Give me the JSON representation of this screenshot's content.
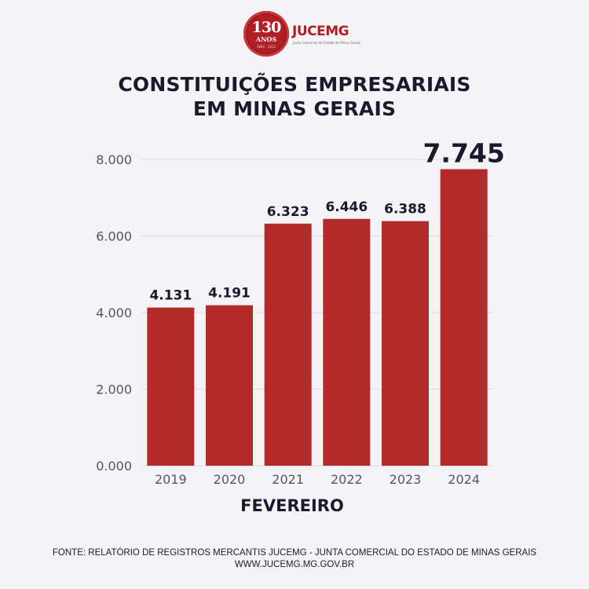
{
  "logo": {
    "seal_number": "130",
    "seal_word": "ANOS",
    "seal_years": "1892 - 2022",
    "brand": "JUCEMG",
    "tagline": "Junta Comercial do Estado de Minas Gerais"
  },
  "title_lines": [
    "CONSTITUIÇÕES EMPRESARIAIS",
    "EM MINAS GERAIS"
  ],
  "footer_lines": [
    "FONTE: RELATÓRIO DE REGISTROS MERCANTIS JUCEMG - JUNTA COMERCIAL DO ESTADO DE MINAS GERAIS",
    "WWW.JUCEMG.MG.GOV.BR"
  ],
  "colors": {
    "bar": "#b22a2a",
    "text": "#1a1a2e",
    "axis_text": "#555566",
    "grid": "#dcdce2",
    "background": "#f4f4f6"
  },
  "chart_data": {
    "type": "bar",
    "title": "CONSTITUIÇÕES EMPRESARIAIS EM MINAS GERAIS",
    "xlabel": "FEVEREIRO",
    "ylabel": "",
    "categories": [
      "2019",
      "2020",
      "2021",
      "2022",
      "2023",
      "2024"
    ],
    "values": [
      4131,
      4191,
      6323,
      6446,
      6388,
      7745
    ],
    "value_labels": [
      "4.131",
      "4.191",
      "6.323",
      "6.446",
      "6.388",
      "7.745"
    ],
    "highlight_index": 5,
    "y_ticks": [
      0,
      2000,
      4000,
      6000,
      8000
    ],
    "y_tick_labels": [
      "0.000",
      "2.000",
      "4.000",
      "6.000",
      "8.000"
    ],
    "ylim": [
      0,
      8000
    ],
    "grid": true,
    "legend": "none"
  }
}
